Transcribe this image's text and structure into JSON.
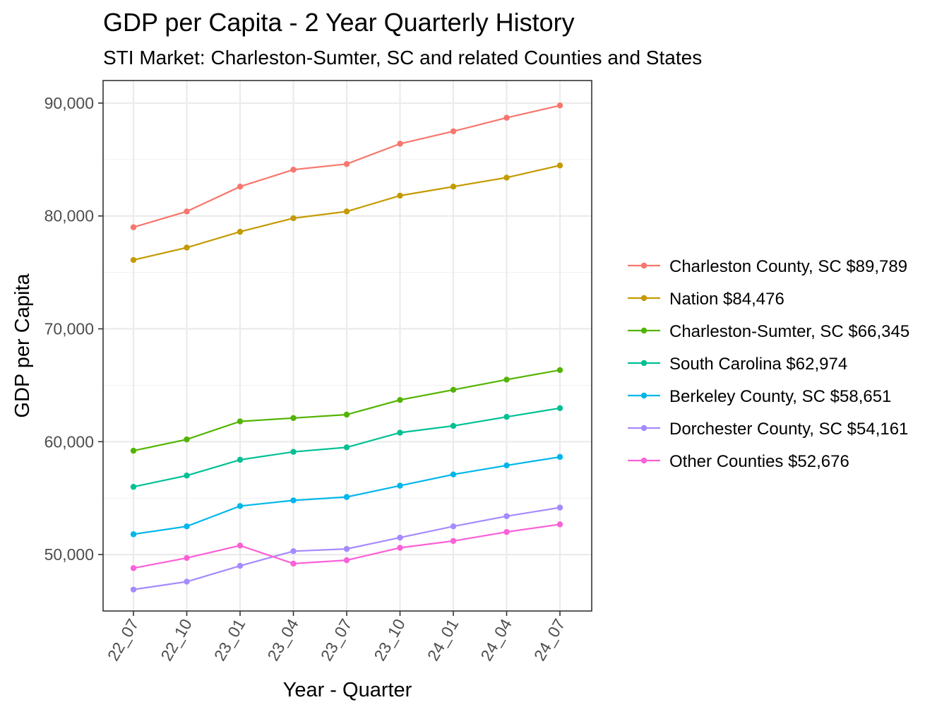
{
  "chart_data": {
    "type": "line",
    "title": "GDP per Capita - 2 Year Quarterly History",
    "subtitle": "STI Market: Charleston-Sumter, SC and related Counties and States",
    "xlabel": "Year - Quarter",
    "ylabel": "GDP per Capita",
    "categories": [
      "22_07",
      "22_10",
      "23_01",
      "23_04",
      "23_07",
      "23_10",
      "24_01",
      "24_04",
      "24_07"
    ],
    "ylim": [
      45000,
      92000
    ],
    "yticks": [
      50000,
      60000,
      70000,
      80000,
      90000
    ],
    "ytick_labels": [
      "50,000",
      "60,000",
      "70,000",
      "80,000",
      "90,000"
    ],
    "grid": true,
    "legend_position": "right",
    "series": [
      {
        "name": "Charleston County, SC $89,789",
        "color": "#F8766D",
        "values": [
          79000,
          80400,
          82600,
          84100,
          84600,
          86400,
          87500,
          88700,
          89789
        ]
      },
      {
        "name": "Nation $84,476",
        "color": "#C49A00",
        "values": [
          76100,
          77200,
          78600,
          79800,
          80400,
          81800,
          82600,
          83400,
          84476
        ]
      },
      {
        "name": "Charleston-Sumter, SC $66,345",
        "color": "#53B400",
        "values": [
          59200,
          60200,
          61800,
          62100,
          62400,
          63700,
          64600,
          65500,
          66345
        ]
      },
      {
        "name": "South Carolina $62,974",
        "color": "#00C094",
        "values": [
          56000,
          57000,
          58400,
          59100,
          59500,
          60800,
          61400,
          62200,
          62974
        ]
      },
      {
        "name": "Berkeley County, SC $58,651",
        "color": "#00B6EB",
        "values": [
          51800,
          52500,
          54300,
          54800,
          55100,
          56100,
          57100,
          57900,
          58651
        ]
      },
      {
        "name": "Dorchester County, SC $54,161",
        "color": "#A58AFF",
        "values": [
          46900,
          47600,
          49000,
          50300,
          50500,
          51500,
          52500,
          53400,
          54161
        ]
      },
      {
        "name": "Other Counties $52,676",
        "color": "#FB61D7",
        "values": [
          48800,
          49700,
          50800,
          49200,
          49500,
          50600,
          51200,
          52000,
          52676
        ]
      }
    ]
  }
}
